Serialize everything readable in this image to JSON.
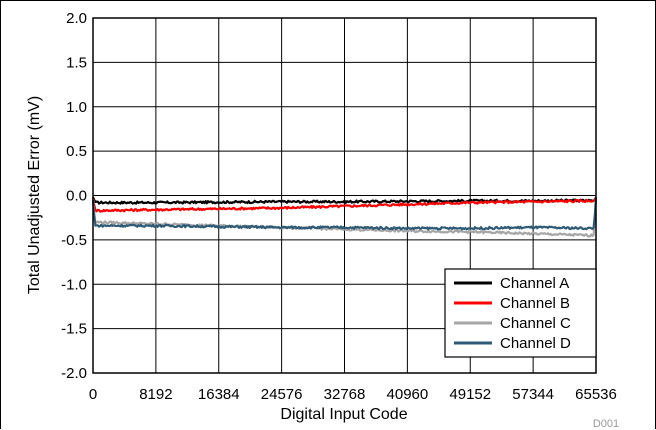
{
  "chart_data": {
    "type": "line",
    "title": "",
    "xlabel": "Digital Input Code",
    "ylabel": "Total Unadjusted Error (mV)",
    "xlim": [
      0,
      65536
    ],
    "ylim": [
      -2.0,
      2.0
    ],
    "x_ticks": [
      0,
      8192,
      16384,
      24576,
      32768,
      40960,
      49152,
      57344,
      65536
    ],
    "x_tick_labels": [
      "0",
      "8192",
      "16384",
      "24576",
      "32768",
      "40960",
      "49152",
      "57344",
      "65536"
    ],
    "y_ticks": [
      2.0,
      1.5,
      1.0,
      0.5,
      0.0,
      -0.5,
      -1.0,
      -1.5,
      -2.0
    ],
    "y_tick_labels": [
      "2.0",
      "1.5",
      "1.0",
      "0.5",
      "0.0",
      "-0.5",
      "-1.0",
      "-1.5",
      "-2.0"
    ],
    "grid": true,
    "legend_position": "bottom-right",
    "figure_id": "D001",
    "series": [
      {
        "name": "Channel A",
        "color": "#000000",
        "x": [
          0,
          256,
          512,
          8192,
          16384,
          24576,
          32768,
          40960,
          49152,
          57344,
          65024,
          65280,
          65536
        ],
        "y": [
          -0.02,
          -0.07,
          -0.08,
          -0.08,
          -0.075,
          -0.07,
          -0.07,
          -0.065,
          -0.06,
          -0.06,
          -0.055,
          -0.06,
          -0.02
        ]
      },
      {
        "name": "Channel B",
        "color": "#ff0000",
        "x": [
          0,
          256,
          512,
          8192,
          16384,
          24576,
          32768,
          40960,
          49152,
          57344,
          65024,
          65280,
          65536
        ],
        "y": [
          -0.03,
          -0.16,
          -0.17,
          -0.16,
          -0.15,
          -0.14,
          -0.12,
          -0.1,
          -0.08,
          -0.07,
          -0.06,
          -0.06,
          -0.02
        ]
      },
      {
        "name": "Channel C",
        "color": "#a6a6a6",
        "x": [
          0,
          256,
          512,
          8192,
          16384,
          24576,
          32768,
          40960,
          49152,
          57344,
          65024,
          65280,
          65536
        ],
        "y": [
          -0.04,
          -0.3,
          -0.3,
          -0.32,
          -0.34,
          -0.36,
          -0.38,
          -0.4,
          -0.41,
          -0.43,
          -0.45,
          -0.44,
          -0.02
        ]
      },
      {
        "name": "Channel D",
        "color": "#2e5a75",
        "x": [
          0,
          256,
          512,
          8192,
          16384,
          24576,
          32768,
          40960,
          49152,
          57344,
          65024,
          65280,
          65536
        ],
        "y": [
          -0.05,
          -0.34,
          -0.34,
          -0.34,
          -0.35,
          -0.36,
          -0.36,
          -0.37,
          -0.37,
          -0.36,
          -0.37,
          -0.36,
          -0.02
        ]
      }
    ]
  }
}
